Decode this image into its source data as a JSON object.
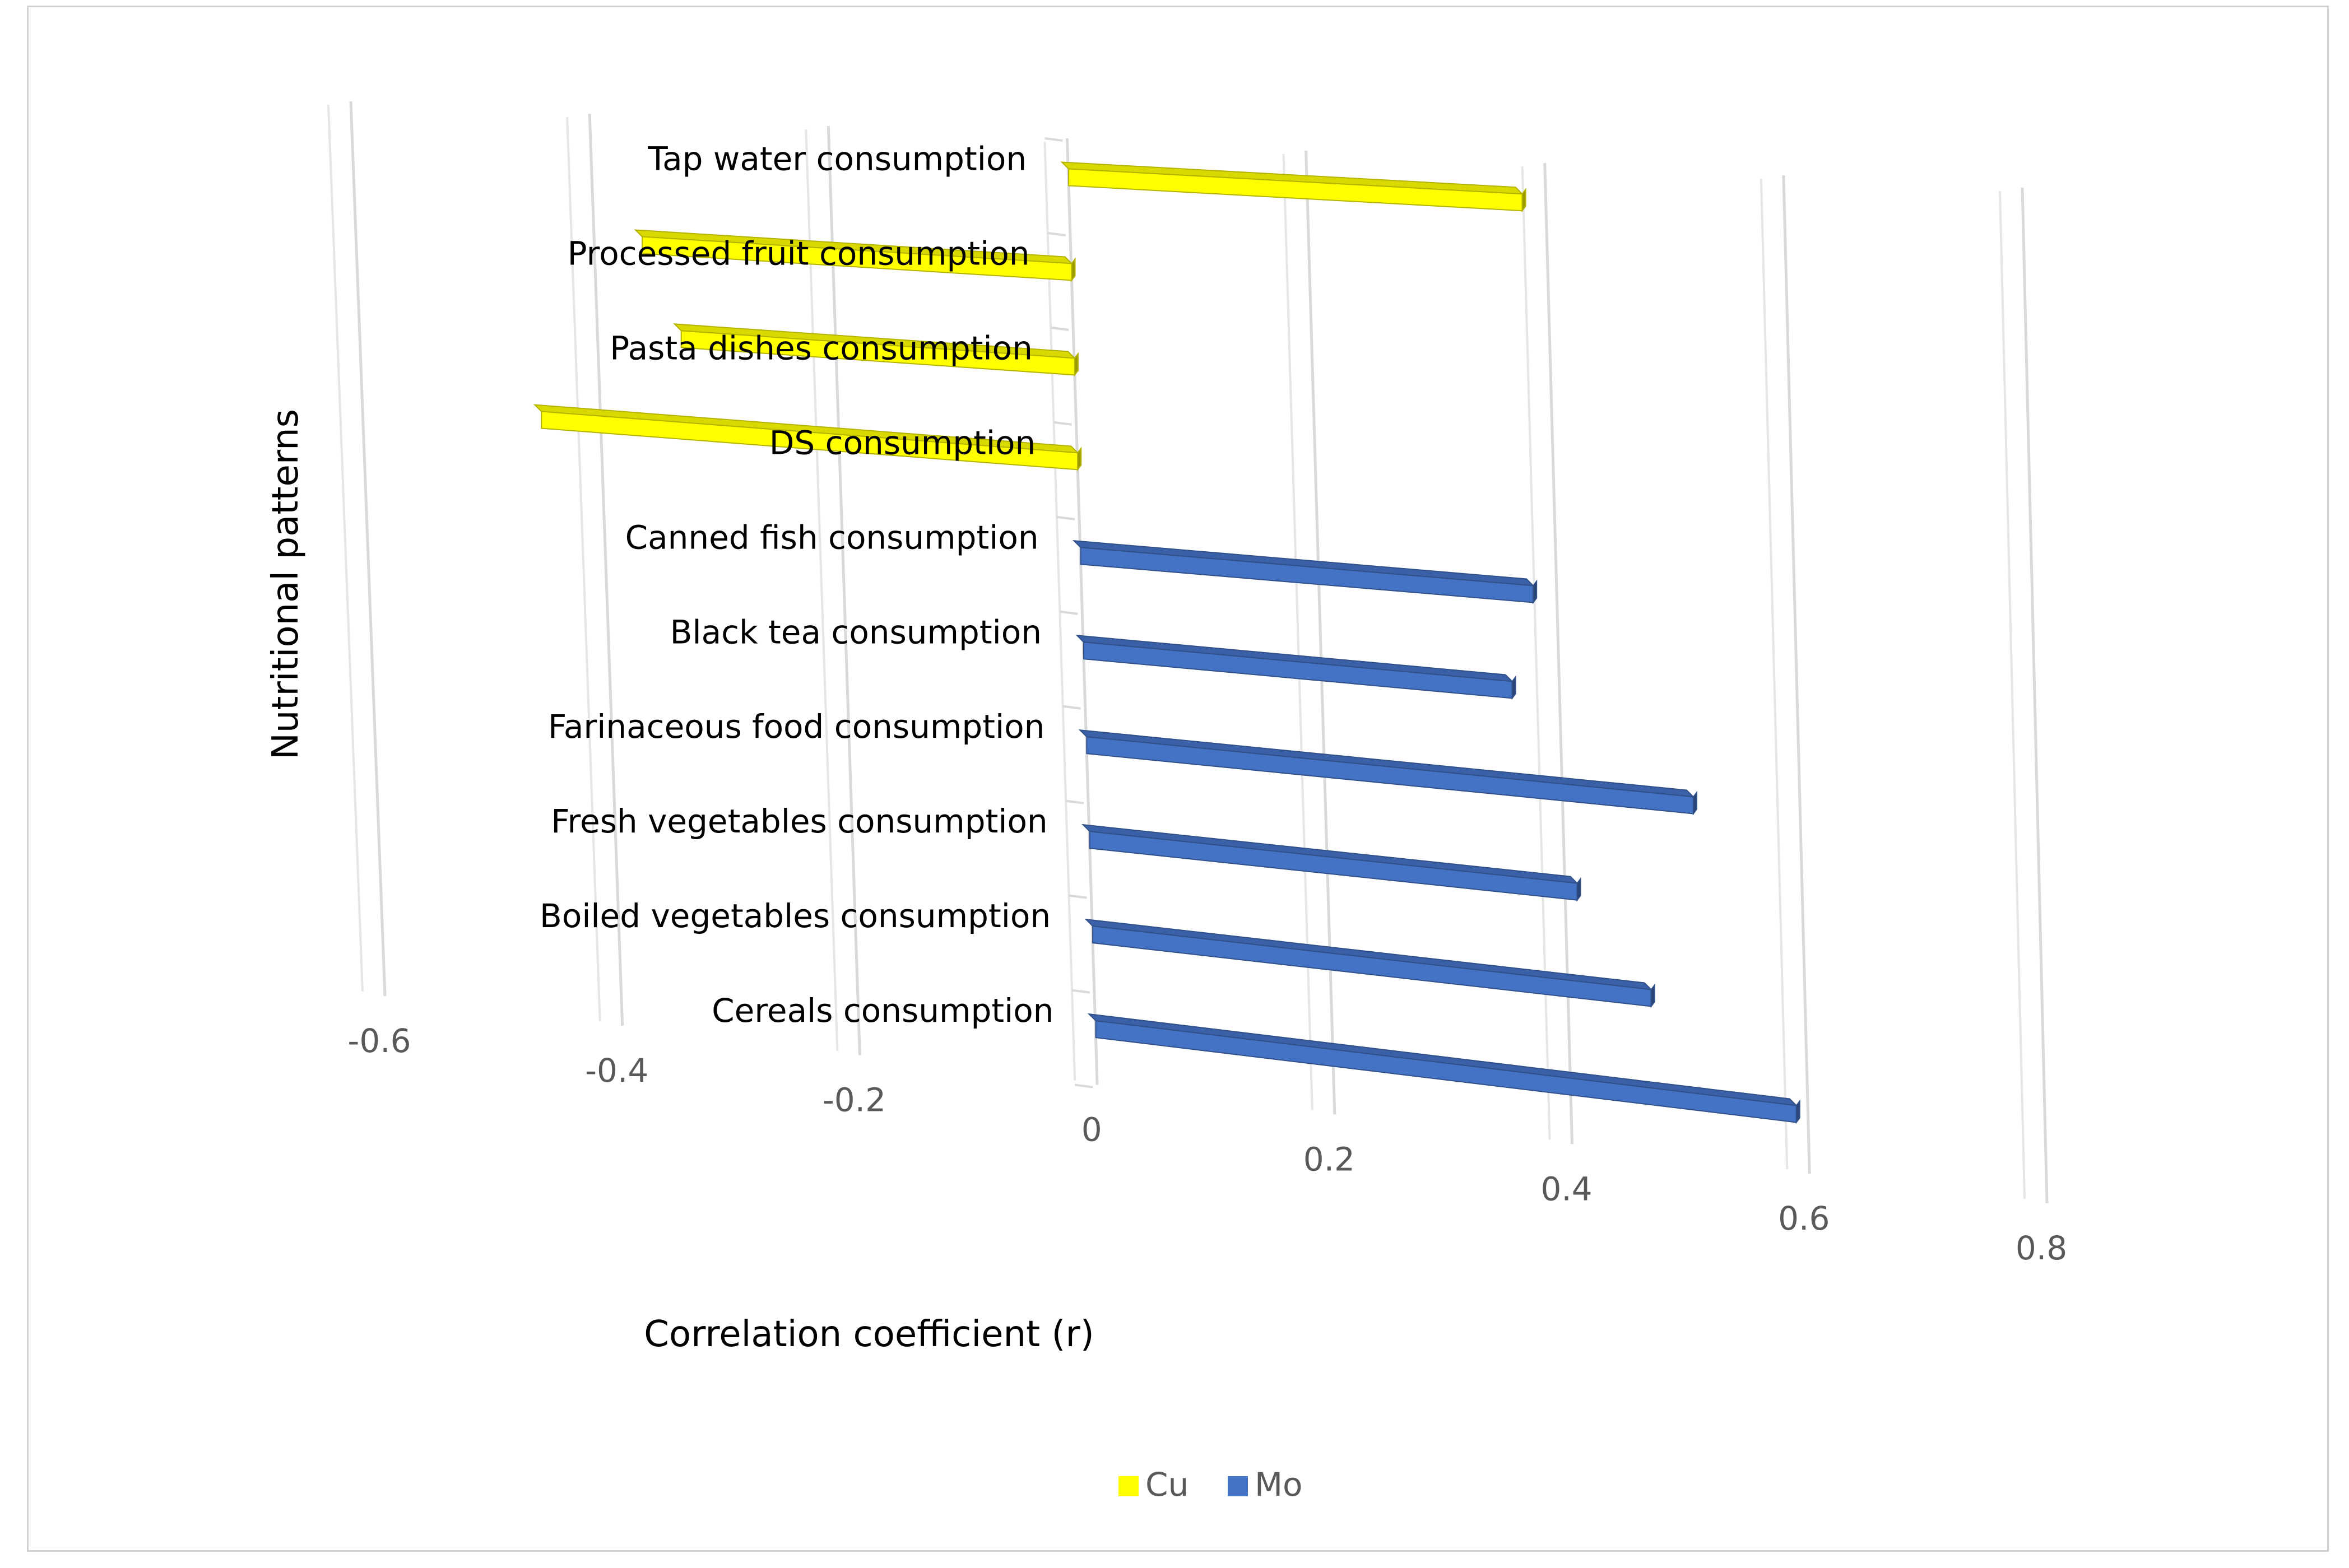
{
  "chart_data": {
    "type": "bar",
    "orientation": "horizontal",
    "style": "3d",
    "title": "",
    "xlabel": "Correlation coefficient (r)",
    "ylabel": "Nutritional patterns",
    "xlim": [
      -0.6,
      0.8
    ],
    "ticks": [
      "-0.6",
      "-0.4",
      "-0.2",
      "0",
      "0.2",
      "0.4",
      "0.6",
      "0.8"
    ],
    "grid": true,
    "legend_position": "bottom",
    "categories": [
      "Tap water consumption",
      "Processed fruit consumption",
      "Pasta dishes consumption",
      "DS consumption",
      "Canned fish consumption",
      "Black tea consumption",
      "Farinaceous food consumption",
      "Fresh vegetables consumption",
      "Boiled vegetables consumption",
      "Cereals consumption"
    ],
    "series": [
      {
        "name": "Cu",
        "color": "#ffff00",
        "values": [
          0.38,
          -0.36,
          -0.33,
          -0.45,
          null,
          null,
          null,
          null,
          null,
          null
        ]
      },
      {
        "name": "Mo",
        "color": "#4472c4",
        "values": [
          null,
          null,
          null,
          null,
          0.38,
          0.36,
          0.51,
          0.41,
          0.47,
          0.59
        ]
      }
    ]
  }
}
